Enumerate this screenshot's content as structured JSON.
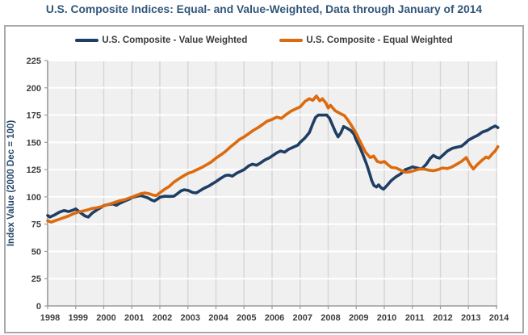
{
  "title": "U.S. Composite Indices: Equal- and Value-Weighted, Data through January of 2014",
  "y_axis_title": "Index Value (2000 Dec = 100)",
  "colors": {
    "title_text": "#31567a",
    "axis_title_text": "#24466b",
    "tick_text": "#3f3f3f",
    "plot_background": "#f0f0f0",
    "h_gridline": "#ffffff",
    "v_gridline": "#d6d6d6",
    "axis_line": "#9a9a9a",
    "frame_border": "#a9a9a9",
    "value_weighted_line": "#1f3e63",
    "equal_weighted_line": "#dc6a0e"
  },
  "chart_data": {
    "type": "line",
    "title": "U.S. Composite Indices: Equal- and Value-Weighted, Data through January of 2014",
    "xlabel": "",
    "ylabel": "Index Value (2000 Dec = 100)",
    "xlim": [
      1998,
      2014.1
    ],
    "ylim": [
      0,
      225
    ],
    "grid": true,
    "legend_position": "top",
    "x_ticks": [
      1998,
      1999,
      2000,
      2001,
      2002,
      2003,
      2004,
      2005,
      2006,
      2007,
      2008,
      2009,
      2010,
      2011,
      2012,
      2013,
      2014
    ],
    "y_ticks": [
      0,
      25,
      50,
      75,
      100,
      125,
      150,
      175,
      200,
      225
    ],
    "series": [
      {
        "name": "U.S. Composite - Value Weighted",
        "color": "#1f3e63",
        "points": [
          [
            1998.0,
            83
          ],
          [
            1998.08,
            81.5
          ],
          [
            1998.25,
            83.5
          ],
          [
            1998.42,
            86
          ],
          [
            1998.58,
            87.5
          ],
          [
            1998.75,
            86.5
          ],
          [
            1998.92,
            88
          ],
          [
            1999.0,
            89
          ],
          [
            1999.17,
            85.5
          ],
          [
            1999.33,
            82.5
          ],
          [
            1999.45,
            81.5
          ],
          [
            1999.58,
            85
          ],
          [
            1999.75,
            88
          ],
          [
            1999.92,
            90.5
          ],
          [
            2000.0,
            92
          ],
          [
            2000.17,
            93
          ],
          [
            2000.33,
            93.5
          ],
          [
            2000.45,
            92.3
          ],
          [
            2000.58,
            94.2
          ],
          [
            2000.75,
            96.2
          ],
          [
            2000.92,
            98
          ],
          [
            2001.0,
            99.4
          ],
          [
            2001.17,
            100.5
          ],
          [
            2001.3,
            101.2
          ],
          [
            2001.42,
            100.4
          ],
          [
            2001.58,
            99
          ],
          [
            2001.7,
            97.2
          ],
          [
            2001.8,
            96.2
          ],
          [
            2001.92,
            98
          ],
          [
            2002.0,
            99.7
          ],
          [
            2002.17,
            100.6
          ],
          [
            2002.33,
            100.4
          ],
          [
            2002.5,
            100.6
          ],
          [
            2002.63,
            103
          ],
          [
            2002.75,
            105.5
          ],
          [
            2002.87,
            106.5
          ],
          [
            2003.0,
            106
          ],
          [
            2003.17,
            104
          ],
          [
            2003.3,
            103.7
          ],
          [
            2003.42,
            105.5
          ],
          [
            2003.58,
            108
          ],
          [
            2003.75,
            110
          ],
          [
            2003.87,
            112
          ],
          [
            2004.0,
            114
          ],
          [
            2004.17,
            117
          ],
          [
            2004.33,
            119.5
          ],
          [
            2004.45,
            120
          ],
          [
            2004.58,
            119
          ],
          [
            2004.75,
            122
          ],
          [
            2004.92,
            124
          ],
          [
            2005.0,
            125
          ],
          [
            2005.17,
            128.5
          ],
          [
            2005.3,
            130
          ],
          [
            2005.45,
            129
          ],
          [
            2005.58,
            131
          ],
          [
            2005.75,
            134
          ],
          [
            2005.92,
            136
          ],
          [
            2006.0,
            137.5
          ],
          [
            2006.17,
            140.5
          ],
          [
            2006.3,
            142
          ],
          [
            2006.45,
            141
          ],
          [
            2006.58,
            143.5
          ],
          [
            2006.75,
            145.5
          ],
          [
            2006.92,
            147.5
          ],
          [
            2007.0,
            150
          ],
          [
            2007.17,
            154
          ],
          [
            2007.33,
            159
          ],
          [
            2007.45,
            167
          ],
          [
            2007.55,
            173
          ],
          [
            2007.65,
            175
          ],
          [
            2007.8,
            175
          ],
          [
            2007.95,
            175
          ],
          [
            2008.05,
            172
          ],
          [
            2008.15,
            166
          ],
          [
            2008.25,
            160
          ],
          [
            2008.35,
            155
          ],
          [
            2008.45,
            158.5
          ],
          [
            2008.55,
            164.5
          ],
          [
            2008.67,
            163
          ],
          [
            2008.8,
            161
          ],
          [
            2008.92,
            157.5
          ],
          [
            2009.0,
            152
          ],
          [
            2009.12,
            146
          ],
          [
            2009.25,
            138
          ],
          [
            2009.37,
            130
          ],
          [
            2009.47,
            122
          ],
          [
            2009.55,
            115
          ],
          [
            2009.63,
            110.5
          ],
          [
            2009.72,
            109
          ],
          [
            2009.8,
            111
          ],
          [
            2009.88,
            108.5
          ],
          [
            2009.97,
            107
          ],
          [
            2010.08,
            110
          ],
          [
            2010.25,
            115
          ],
          [
            2010.42,
            118.5
          ],
          [
            2010.58,
            121
          ],
          [
            2010.75,
            125
          ],
          [
            2010.92,
            126.5
          ],
          [
            2011.0,
            127.5
          ],
          [
            2011.17,
            126.5
          ],
          [
            2011.33,
            125.5
          ],
          [
            2011.5,
            130
          ],
          [
            2011.63,
            135
          ],
          [
            2011.75,
            138
          ],
          [
            2011.88,
            136
          ],
          [
            2011.97,
            135.5
          ],
          [
            2012.08,
            138
          ],
          [
            2012.25,
            142
          ],
          [
            2012.42,
            144.5
          ],
          [
            2012.58,
            145.5
          ],
          [
            2012.75,
            146.5
          ],
          [
            2012.92,
            150
          ],
          [
            2013.0,
            152
          ],
          [
            2013.17,
            154.5
          ],
          [
            2013.33,
            156.5
          ],
          [
            2013.5,
            159.5
          ],
          [
            2013.67,
            161
          ],
          [
            2013.83,
            163.5
          ],
          [
            2013.95,
            165
          ],
          [
            2014.05,
            163.5
          ]
        ]
      },
      {
        "name": "U.S. Composite - Equal Weighted",
        "color": "#dc6a0e",
        "points": [
          [
            1998.0,
            78
          ],
          [
            1998.13,
            76.8
          ],
          [
            1998.25,
            78
          ],
          [
            1998.42,
            79.5
          ],
          [
            1998.58,
            81
          ],
          [
            1998.75,
            82.5
          ],
          [
            1998.92,
            84.5
          ],
          [
            1999.08,
            86
          ],
          [
            1999.25,
            87
          ],
          [
            1999.42,
            88
          ],
          [
            1999.58,
            89.3
          ],
          [
            1999.75,
            90
          ],
          [
            1999.92,
            91
          ],
          [
            2000.08,
            92.3
          ],
          [
            2000.25,
            93.8
          ],
          [
            2000.42,
            95.2
          ],
          [
            2000.58,
            96.5
          ],
          [
            2000.75,
            97.5
          ],
          [
            2000.92,
            99
          ],
          [
            2001.0,
            99.7
          ],
          [
            2001.17,
            101.5
          ],
          [
            2001.33,
            103
          ],
          [
            2001.47,
            103.6
          ],
          [
            2001.62,
            102.9
          ],
          [
            2001.78,
            101.5
          ],
          [
            2001.88,
            101.2
          ],
          [
            2002.0,
            103.8
          ],
          [
            2002.17,
            107
          ],
          [
            2002.33,
            109.5
          ],
          [
            2002.5,
            113.5
          ],
          [
            2002.67,
            116.5
          ],
          [
            2002.83,
            119
          ],
          [
            2003.0,
            121.5
          ],
          [
            2003.17,
            123
          ],
          [
            2003.33,
            125
          ],
          [
            2003.5,
            127
          ],
          [
            2003.67,
            129.5
          ],
          [
            2003.83,
            132
          ],
          [
            2004.0,
            135.5
          ],
          [
            2004.17,
            138.5
          ],
          [
            2004.33,
            141.5
          ],
          [
            2004.5,
            145.5
          ],
          [
            2004.67,
            149
          ],
          [
            2004.83,
            152.5
          ],
          [
            2005.0,
            155
          ],
          [
            2005.17,
            158
          ],
          [
            2005.33,
            161
          ],
          [
            2005.5,
            163.5
          ],
          [
            2005.67,
            166.5
          ],
          [
            2005.83,
            169.5
          ],
          [
            2006.0,
            171
          ],
          [
            2006.17,
            173.2
          ],
          [
            2006.33,
            172
          ],
          [
            2006.5,
            175.5
          ],
          [
            2006.67,
            178.5
          ],
          [
            2006.83,
            180.5
          ],
          [
            2007.0,
            182.5
          ],
          [
            2007.17,
            187.5
          ],
          [
            2007.33,
            190
          ],
          [
            2007.45,
            188.5
          ],
          [
            2007.58,
            192.5
          ],
          [
            2007.7,
            188
          ],
          [
            2007.79,
            190
          ],
          [
            2007.92,
            186
          ],
          [
            2008.0,
            181.5
          ],
          [
            2008.08,
            184
          ],
          [
            2008.25,
            179
          ],
          [
            2008.42,
            176.5
          ],
          [
            2008.58,
            174.5
          ],
          [
            2008.7,
            170.5
          ],
          [
            2008.83,
            165.5
          ],
          [
            2009.0,
            158
          ],
          [
            2009.17,
            149
          ],
          [
            2009.33,
            141
          ],
          [
            2009.5,
            136
          ],
          [
            2009.62,
            137.5
          ],
          [
            2009.75,
            132.5
          ],
          [
            2009.88,
            131.5
          ],
          [
            2010.0,
            132.5
          ],
          [
            2010.13,
            129.5
          ],
          [
            2010.25,
            127
          ],
          [
            2010.42,
            126.5
          ],
          [
            2010.58,
            124.5
          ],
          [
            2010.75,
            122.5
          ],
          [
            2010.92,
            123
          ],
          [
            2011.08,
            124.2
          ],
          [
            2011.25,
            125.5
          ],
          [
            2011.42,
            125.5
          ],
          [
            2011.58,
            124.5
          ],
          [
            2011.75,
            124
          ],
          [
            2011.92,
            125
          ],
          [
            2012.08,
            126.5
          ],
          [
            2012.25,
            126
          ],
          [
            2012.42,
            127.5
          ],
          [
            2012.58,
            130
          ],
          [
            2012.75,
            132.5
          ],
          [
            2012.92,
            136
          ],
          [
            2013.05,
            130
          ],
          [
            2013.17,
            125.5
          ],
          [
            2013.33,
            130
          ],
          [
            2013.5,
            134
          ],
          [
            2013.63,
            136.5
          ],
          [
            2013.72,
            135.5
          ],
          [
            2013.85,
            139.5
          ],
          [
            2013.95,
            142
          ],
          [
            2014.05,
            146
          ]
        ]
      }
    ]
  }
}
